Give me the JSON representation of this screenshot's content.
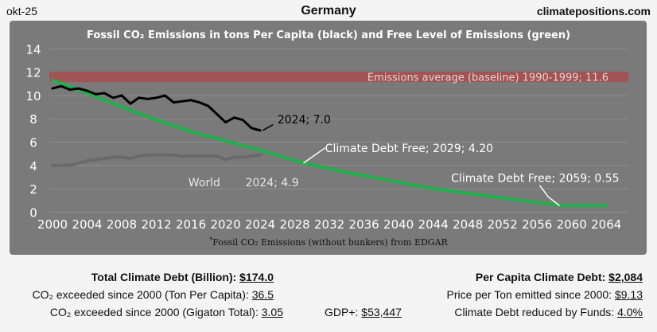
{
  "header": {
    "date": "okt-25",
    "title": "Germany",
    "site": "climatepositions.com"
  },
  "colors": {
    "panel_bg": "#7a7a7a",
    "baseline_band": "#a05454",
    "emissions_line": "#000000",
    "free_level_line": "#1fb04a",
    "world_line": "#6a6a6a"
  },
  "chart_data": {
    "type": "line",
    "title": "Fossil CO₂ Emissions in tons Per Capita (black) and Free Level of Emissions (green)",
    "footnote_mark": "*",
    "footnote": "Fossil CO₂ Emissions (without bunkers) from EDGAR",
    "xlim": [
      2000,
      2066
    ],
    "ylim": [
      -1,
      14.5
    ],
    "x_ticks": [
      2000,
      2004,
      2008,
      2012,
      2016,
      2020,
      2024,
      2028,
      2032,
      2036,
      2040,
      2044,
      2048,
      2052,
      2056,
      2060,
      2064
    ],
    "y_ticks": [
      0,
      2,
      4,
      6,
      8,
      10,
      12,
      14
    ],
    "grid": true,
    "baseline": {
      "value": 11.6,
      "label": "Emissions average (baseline) 1990-1999; 11.6"
    },
    "series": [
      {
        "key": "germany",
        "x": [
          2000,
          2001,
          2002,
          2003,
          2004,
          2005,
          2006,
          2007,
          2008,
          2009,
          2010,
          2011,
          2012,
          2013,
          2014,
          2015,
          2016,
          2017,
          2018,
          2019,
          2020,
          2021,
          2022,
          2023,
          2024
        ],
        "values": [
          10.6,
          10.8,
          10.5,
          10.6,
          10.4,
          10.1,
          10.2,
          9.8,
          10.0,
          9.3,
          9.8,
          9.7,
          9.8,
          10.0,
          9.4,
          9.5,
          9.6,
          9.4,
          9.1,
          8.4,
          7.7,
          8.1,
          7.9,
          7.2,
          7.0
        ]
      },
      {
        "key": "free_level",
        "x": [
          2000,
          2004,
          2008,
          2012,
          2016,
          2020,
          2024,
          2029,
          2034,
          2039,
          2044,
          2049,
          2054,
          2059,
          2064
        ],
        "values": [
          11.3,
          10.2,
          9.0,
          7.9,
          6.9,
          6.1,
          5.3,
          4.2,
          3.4,
          2.7,
          2.0,
          1.5,
          1.0,
          0.55,
          0.55
        ]
      },
      {
        "key": "world",
        "x": [
          2000,
          2001,
          2002,
          2003,
          2004,
          2005,
          2006,
          2007,
          2008,
          2009,
          2010,
          2011,
          2012,
          2013,
          2014,
          2015,
          2016,
          2017,
          2018,
          2019,
          2020,
          2021,
          2022,
          2023,
          2024
        ],
        "values": [
          4.0,
          4.0,
          4.0,
          4.2,
          4.4,
          4.5,
          4.6,
          4.7,
          4.7,
          4.6,
          4.8,
          4.9,
          4.9,
          4.9,
          4.9,
          4.8,
          4.8,
          4.8,
          4.8,
          4.8,
          4.5,
          4.7,
          4.7,
          4.8,
          4.9
        ]
      }
    ],
    "annotations": {
      "emissions_end": "2024; 7.0",
      "debt_free_2029": "Climate Debt Free; 2029; 4.20",
      "debt_free_2059": "Climate Debt Free; 2059; 0.55",
      "world_label": "World",
      "world_end": "2024; 4.9"
    }
  },
  "stats": {
    "total_climate_debt": {
      "label": "Total Climate Debt (Billion):",
      "value": "$174.0"
    },
    "co2_exceeded_per_capita": {
      "label": "CO₂ exceeded since 2000 (Ton Per Capita):",
      "value": "36.5"
    },
    "co2_exceeded_total": {
      "label": "CO₂ exceeded since 2000 (Gigaton Total):",
      "value": "3.05"
    },
    "gdp_plus": {
      "label": "GDP+:",
      "value": "$53,447"
    },
    "per_capita_climate_debt": {
      "label": "Per Capita Climate Debt:",
      "value": "$2,084"
    },
    "price_per_ton": {
      "label": "Price per Ton emitted since 2000:",
      "value": "$9.13"
    },
    "debt_reduced_by_funds": {
      "label": "Climate Debt reduced by Funds:",
      "value": "4.0%"
    }
  }
}
